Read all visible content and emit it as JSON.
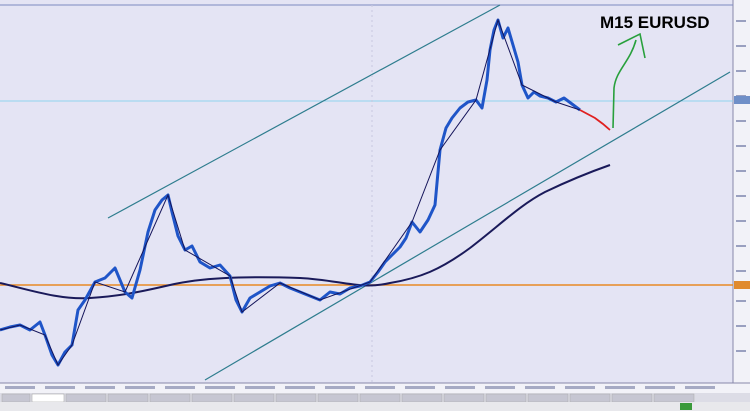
{
  "header": {
    "title": "M15 EURUSD"
  }
}
